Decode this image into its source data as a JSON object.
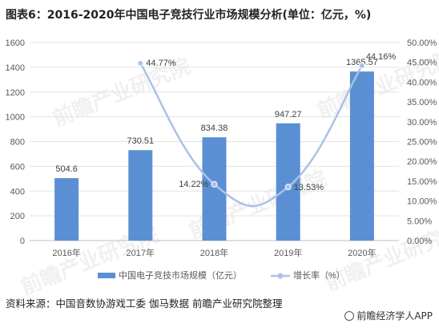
{
  "title": "图表6：2016-2020年中国电子竞技行业市场规模分析(单位：亿元，%)",
  "source": "资料来源：中国音数协游戏工委 伽马数据 前瞻产业研究院整理",
  "brand": "前瞻经济学人APP",
  "watermark": "前瞻产业研究院",
  "colors": {
    "bar": "#5b8fd4",
    "line": "#a9c2e6",
    "axis_text": "#595959",
    "grid": "#e3e3e3"
  },
  "chart_data": {
    "type": "bar",
    "categories": [
      "2016年",
      "2017年",
      "2018年",
      "2019年",
      "2020年"
    ],
    "series": [
      {
        "name": "中国电子竞技市场规模（亿元）",
        "type": "bar",
        "axis": "left",
        "values": [
          504.6,
          730.51,
          834.38,
          947.27,
          1365.57
        ],
        "labels": [
          "504.6",
          "730.51",
          "834.38",
          "947.27",
          "1365.57"
        ]
      },
      {
        "name": "增长率（%）",
        "type": "line",
        "axis": "right",
        "values": [
          null,
          44.77,
          14.22,
          13.53,
          44.16
        ],
        "labels": [
          "",
          "44.77%",
          "14.22%",
          "13.53%",
          "44.16%"
        ]
      }
    ],
    "y_left": {
      "min": 0,
      "max": 1600,
      "step": 200,
      "ticks": [
        "0",
        "200",
        "400",
        "600",
        "800",
        "1000",
        "1200",
        "1400",
        "1600"
      ]
    },
    "y_right": {
      "min": 0,
      "max": 50,
      "step": 5,
      "ticks": [
        "0.00%",
        "5.00%",
        "10.00%",
        "15.00%",
        "20.00%",
        "25.00%",
        "30.00%",
        "35.00%",
        "40.00%",
        "45.00%",
        "50.00%"
      ]
    },
    "legend_position": "bottom"
  }
}
